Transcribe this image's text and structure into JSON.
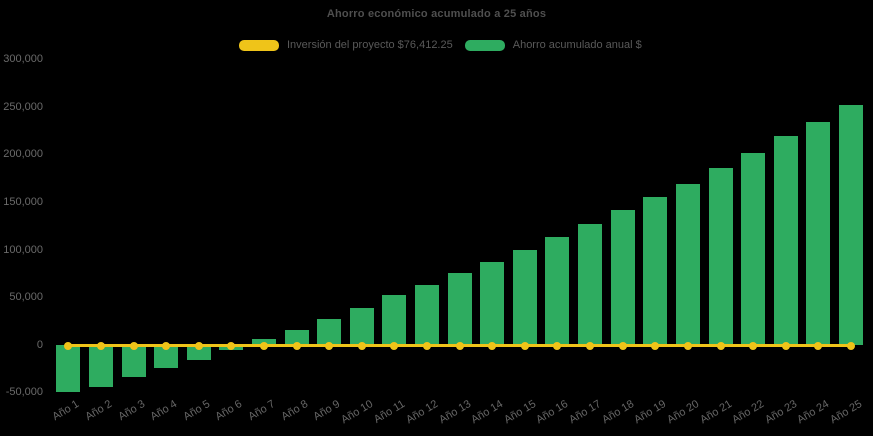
{
  "title": "Ahorro económico acumulado a 25 años",
  "colors": {
    "background": "#000000",
    "investment_yellow": "#efc419",
    "savings_green": "#2eac60",
    "title_text": "#4f4f4f",
    "legend_text": "#595959",
    "tick_text": "#6a6a6a"
  },
  "chart_data": {
    "type": "bar",
    "title": "Ahorro económico acumulado a 25 años",
    "xlabel": "",
    "ylabel": "",
    "legend_position": "top",
    "grid": false,
    "background": "#000000",
    "ylim": [
      -50000,
      300000
    ],
    "yticks": {
      "values": [
        300000,
        250000,
        200000,
        150000,
        100000,
        50000,
        0,
        -50000
      ],
      "labels": [
        "300,000",
        "250,000",
        "200,000",
        "150,000",
        "100,000",
        "50,000",
        "0",
        "-50,000"
      ]
    },
    "categories": [
      "Año 1",
      "Año 2",
      "Año 3",
      "Año 4",
      "Año 5",
      "Año 6",
      "Año 7",
      "Año 8",
      "Año 9",
      "Año 10",
      "Año 11",
      "Año 12",
      "Año 13",
      "Año 14",
      "Año 15",
      "Año 16",
      "Año 17",
      "Año 18",
      "Año 19",
      "Año 20",
      "Año 21",
      "Año 22",
      "Año 23",
      "Año 24",
      "Año 25"
    ],
    "series": [
      {
        "name": "Inversión del proyecto $76,412.25",
        "type": "line",
        "color": "#efc419",
        "values": [
          0,
          0,
          0,
          0,
          0,
          0,
          0,
          0,
          0,
          0,
          0,
          0,
          0,
          0,
          0,
          0,
          0,
          0,
          0,
          0,
          0,
          0,
          0,
          0,
          0
        ]
      },
      {
        "name": "Ahorro acumulado anual $",
        "type": "bar",
        "color": "#2eac60",
        "values": [
          -50000,
          -44000,
          -34000,
          -24500,
          -15800,
          -5000,
          6300,
          16100,
          26700,
          39000,
          52000,
          62500,
          75000,
          87000,
          100000,
          113000,
          127500,
          141500,
          155000,
          169500,
          185500,
          202000,
          219000,
          234000,
          252000
        ]
      }
    ]
  }
}
